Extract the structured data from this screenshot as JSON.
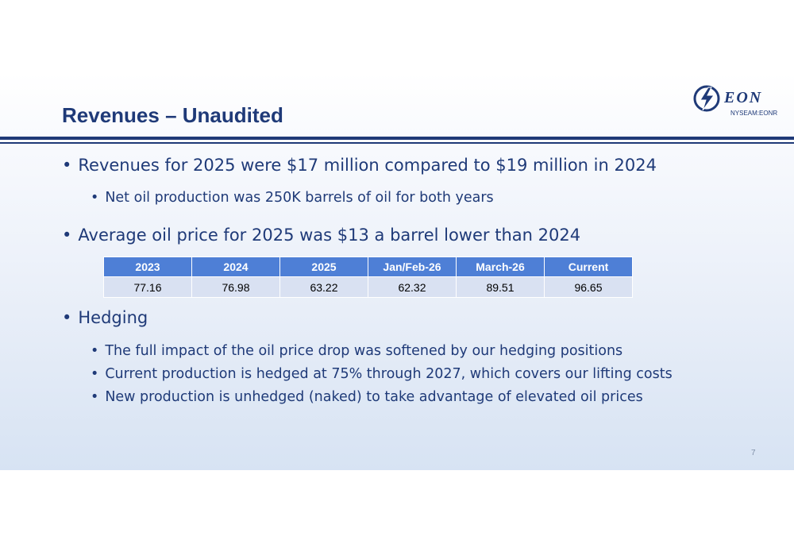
{
  "slide": {
    "title": "Revenues – Unaudited",
    "logo": {
      "name": "EON",
      "ticker": "NYSEAM:EONR"
    },
    "bullets": {
      "b1": "Revenues for 2025 were $17 million compared to $19 million in 2024",
      "b1_1": "Net oil production was 250K barrels of oil for both years",
      "b2": "Average oil price for 2025 was $13 a barrel lower than 2024",
      "b3": "Hedging",
      "b3_1": "The full impact of the oil price drop was softened by our hedging positions",
      "b3_2": "Current production is hedged at 75% through 2027, which covers our lifting costs",
      "b3_3": "New production is unhedged (naked) to take advantage of elevated oil prices"
    },
    "table": {
      "headers": [
        "2023",
        "2024",
        "2025",
        "Jan/Feb-26",
        "March-26",
        "Current"
      ],
      "values": [
        "77.16",
        "76.98",
        "63.22",
        "62.32",
        "89.51",
        "96.65"
      ]
    },
    "page_number": "7"
  },
  "colors": {
    "title": "#1f3a78",
    "table_header": "#4e7fd6",
    "table_cell": "#d9e1f2"
  }
}
